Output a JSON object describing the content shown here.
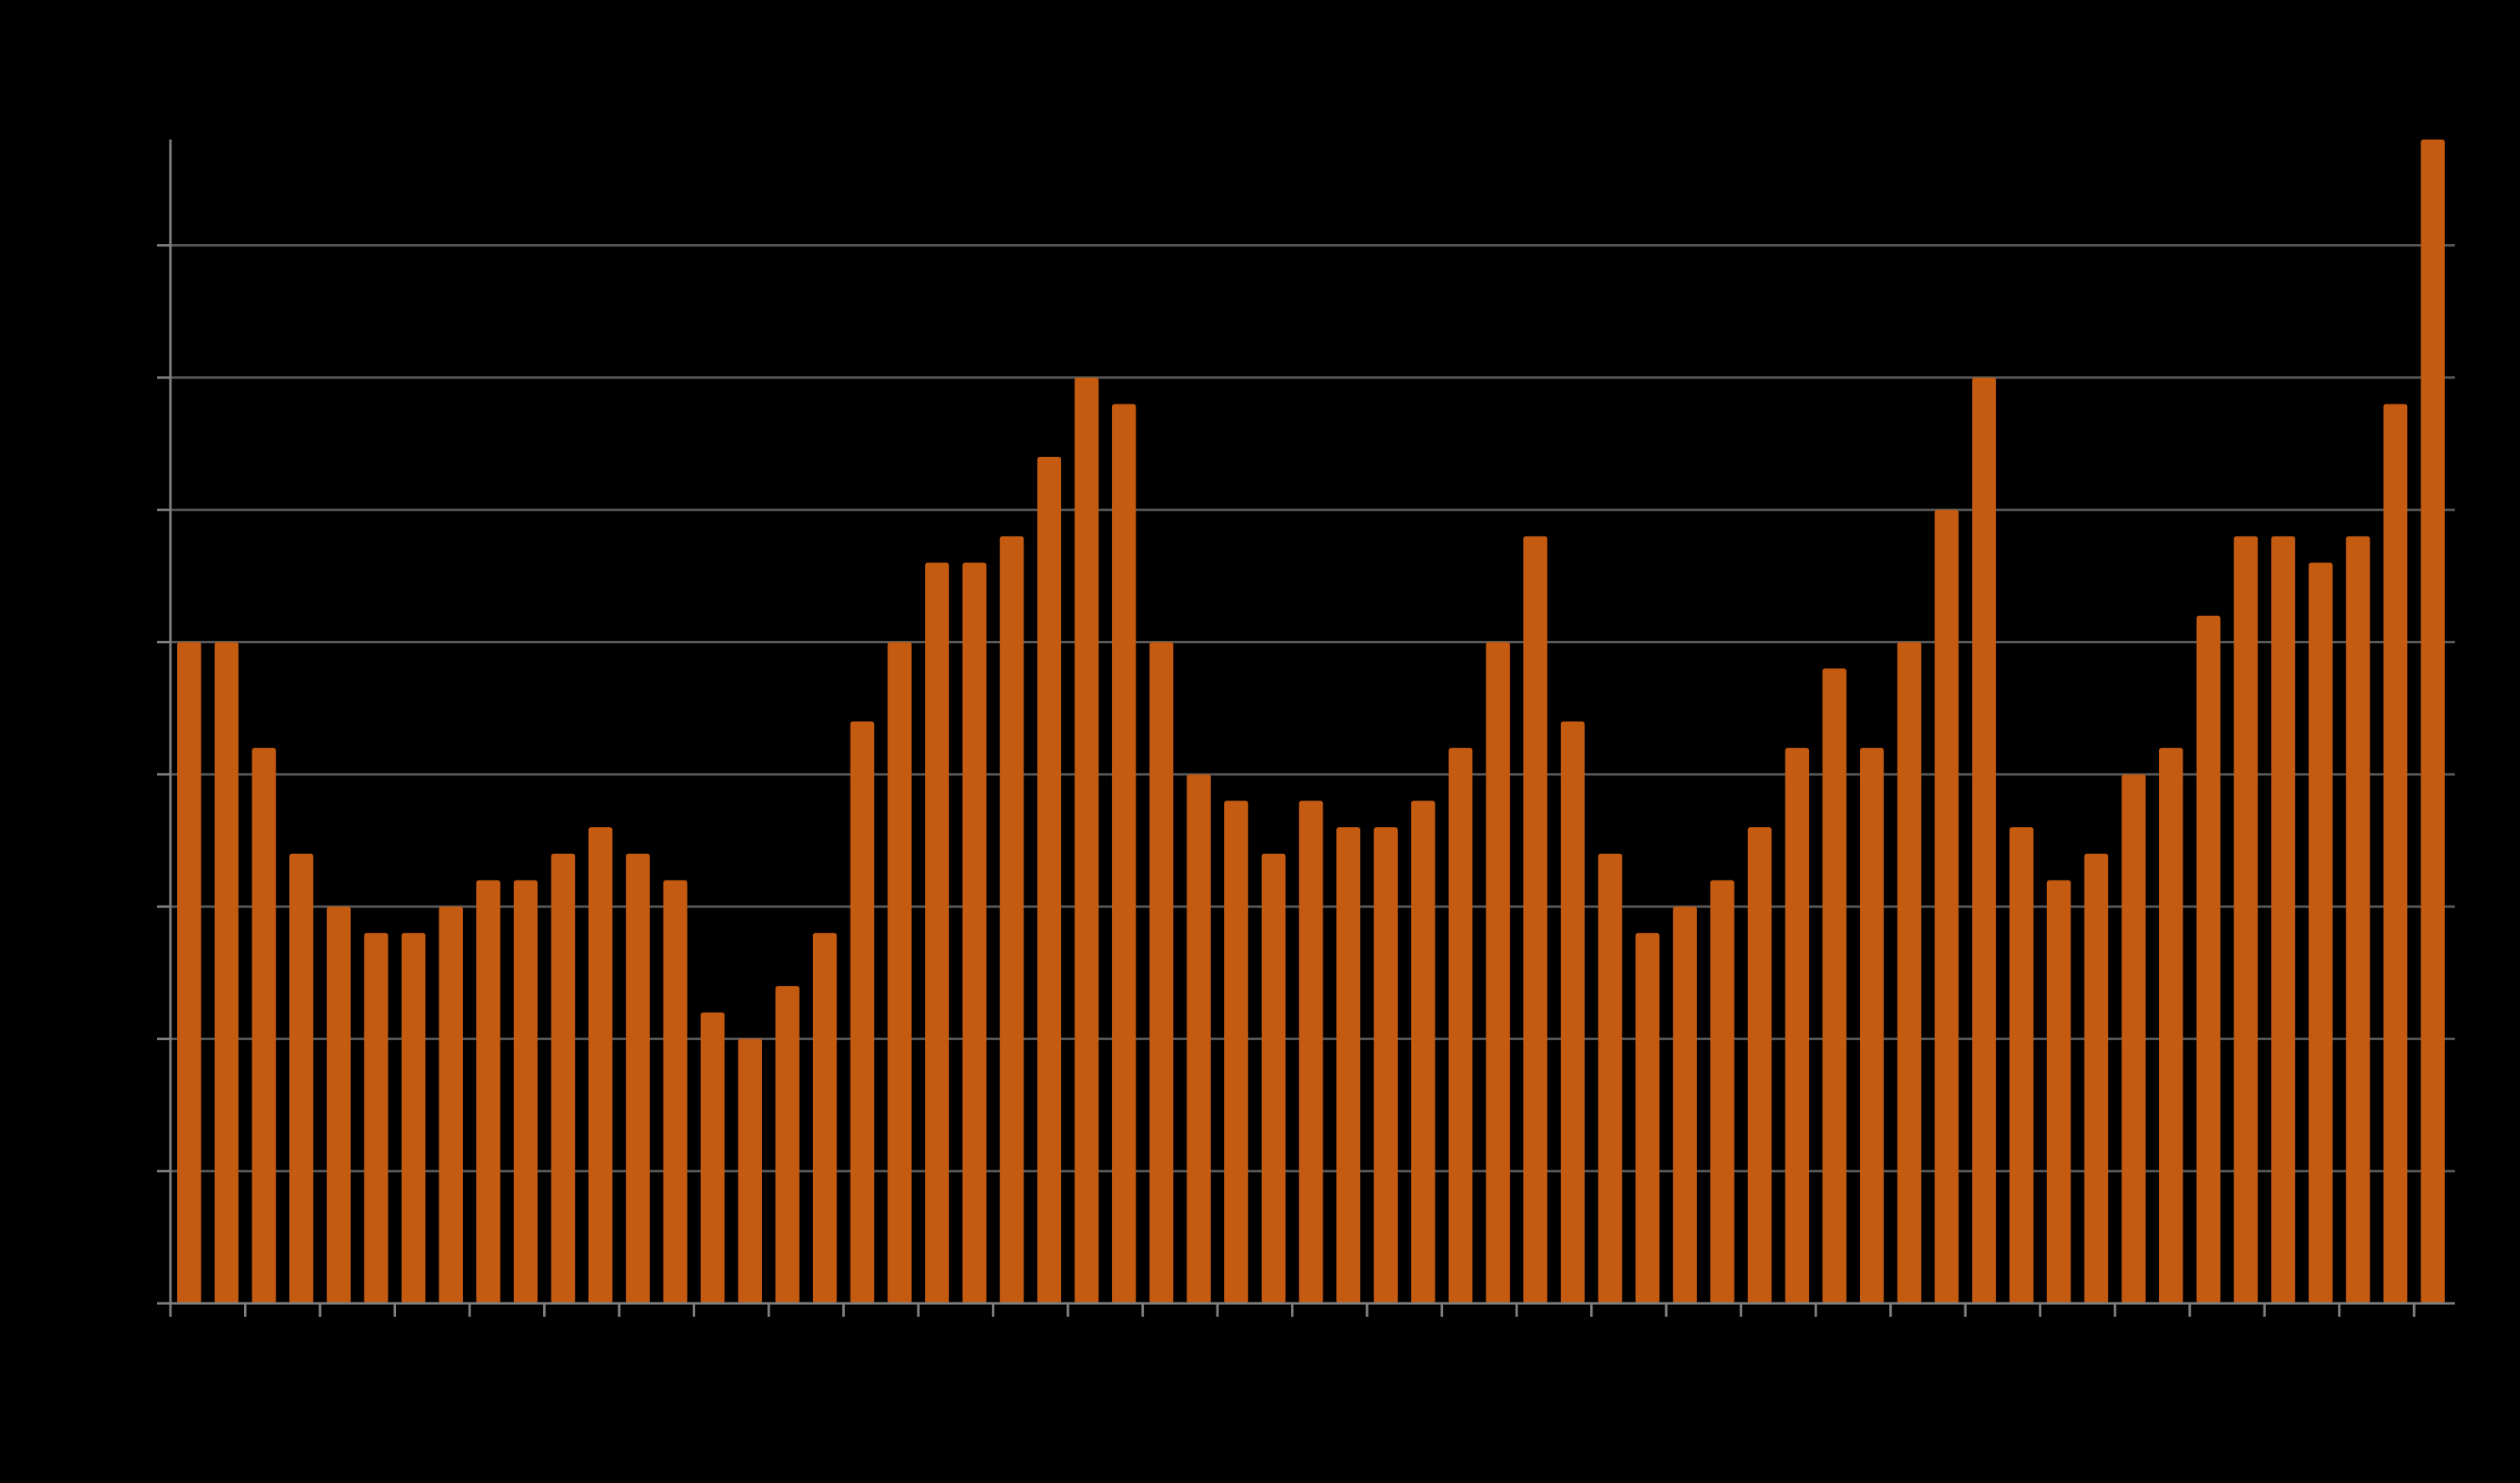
{
  "chart_data": {
    "type": "bar",
    "title": "",
    "xlabel": "",
    "ylabel": "",
    "values": [
      25,
      25,
      21,
      17,
      15,
      14,
      14,
      15,
      16,
      16,
      17,
      18,
      17,
      16,
      11,
      10,
      12,
      14,
      22,
      25,
      28,
      28,
      29,
      32,
      35,
      34,
      25,
      20,
      19,
      17,
      19,
      18,
      18,
      19,
      21,
      25,
      29,
      22,
      17,
      14,
      15,
      16,
      18,
      21,
      24,
      21,
      25,
      30,
      35,
      18,
      16,
      17,
      20,
      21,
      26,
      29,
      29,
      28,
      29,
      34,
      44
    ],
    "ylim": [
      0,
      44
    ],
    "y_gridlines": [
      5,
      10,
      15,
      20,
      25,
      30,
      35,
      40
    ],
    "x_tick_count": 31,
    "grid": true,
    "colors": {
      "background": "#000000",
      "bar": "#c55a11",
      "grid": "#595959",
      "axis": "#7f7f7f"
    }
  }
}
